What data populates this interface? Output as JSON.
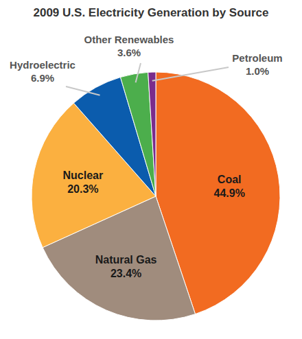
{
  "chart_data": {
    "type": "pie",
    "title": "2009 U.S. Electricity Generation by Source",
    "categories": [
      "Coal",
      "Natural Gas",
      "Nuclear",
      "Hydroelectric",
      "Other Renewables",
      "Petroleum"
    ],
    "values": [
      44.9,
      23.4,
      20.3,
      6.9,
      3.6,
      1.0
    ],
    "value_labels": [
      "44.9%",
      "23.4%",
      "20.3%",
      "6.9%",
      "3.6%",
      "1.0%"
    ],
    "colors": [
      "#f26b21",
      "#a08c7d",
      "#fbb040",
      "#0b5cad",
      "#4cae4c",
      "#7a2c8c"
    ],
    "data_labels": true
  }
}
